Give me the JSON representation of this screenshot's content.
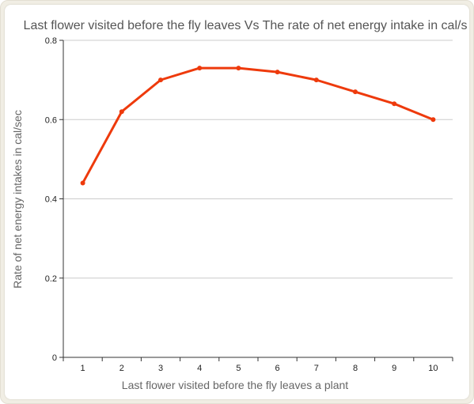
{
  "chart_data": {
    "type": "line",
    "title": "Last flower visited before the fly leaves  Vs The rate of net energy intake in cal/s",
    "xlabel": "Last flower visited before the fly leaves a plant",
    "ylabel": "Rate of net energy intakes in cal/sec",
    "categories": [
      "1",
      "2",
      "3",
      "4",
      "5",
      "6",
      "7",
      "8",
      "9",
      "10"
    ],
    "series": [
      {
        "values": [
          0.44,
          0.62,
          0.7,
          0.73,
          0.73,
          0.72,
          0.7,
          0.67,
          0.64,
          0.6
        ]
      }
    ],
    "yticks": [
      "0",
      "0.2",
      "0.4",
      "0.6",
      "0.8"
    ],
    "ylim": [
      0,
      0.8
    ],
    "grid": true,
    "legend": "none",
    "line_color": "#ee3a0c"
  }
}
